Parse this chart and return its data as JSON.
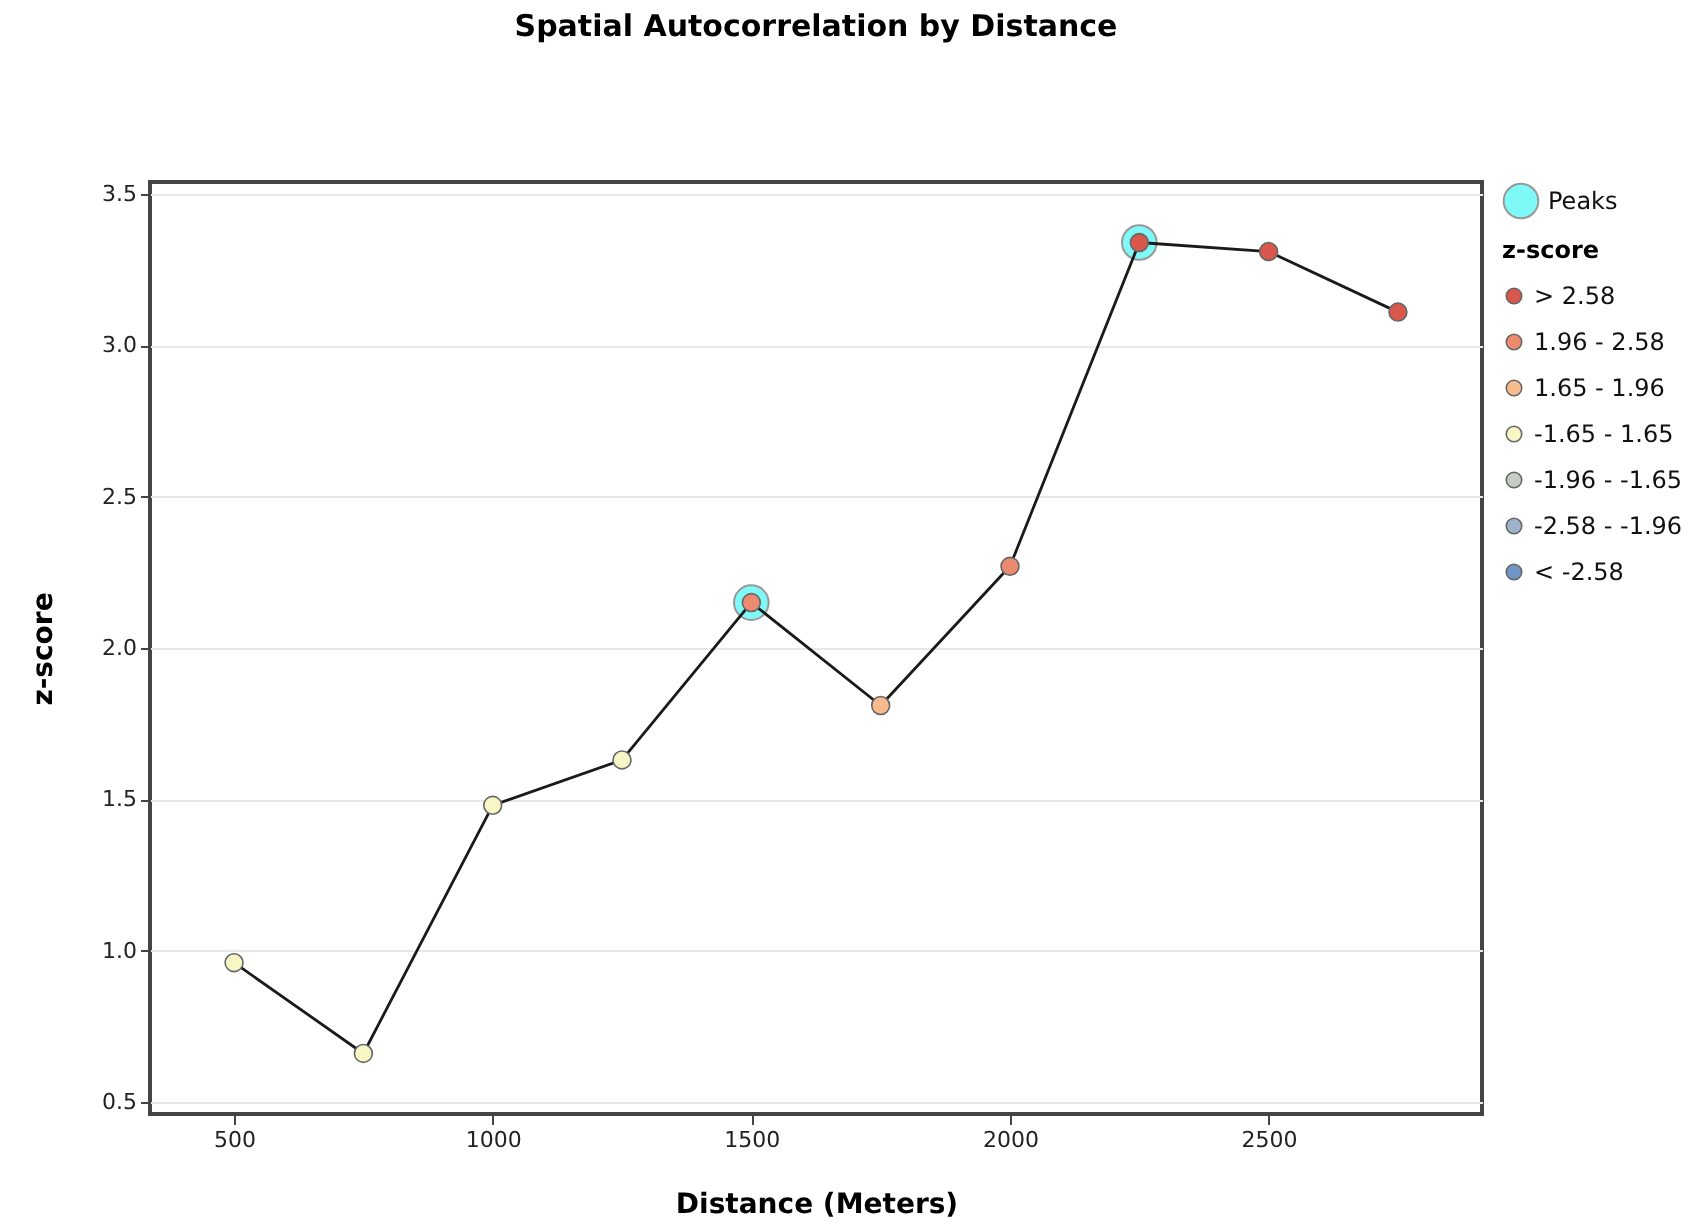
{
  "chart_data": {
    "type": "scatter",
    "title": "Spatial Autocorrelation by Distance",
    "xlabel": "Distance (Meters)",
    "ylabel": "z-score",
    "legend_title": "z-score",
    "x": [
      500,
      750,
      1000,
      1250,
      1500,
      1750,
      2000,
      2250,
      2500,
      2750
    ],
    "xlim": [
      337.5,
      2912.5
    ],
    "xticks": [
      500,
      1000,
      1500,
      2000,
      2500
    ],
    "ylim": [
      0.46,
      3.54
    ],
    "yticks": [
      0.5,
      {
        "value": 1,
        "label": "1.0"
      },
      1.5,
      {
        "value": 2,
        "label": "2.0"
      },
      2.5,
      {
        "value": 3,
        "label": "3.0"
      },
      3.5
    ],
    "grid": "y",
    "legend": "right",
    "series": [
      {
        "type": "line",
        "color": "#1a1a1a",
        "values": [
          0.96,
          0.66,
          1.48,
          1.63,
          2.15,
          1.81,
          2.27,
          3.34,
          3.31,
          3.11
        ]
      },
      {
        "name": "Peaks",
        "marker": "circle",
        "color": "#7ff8f8",
        "x": [
          1500,
          2250
        ],
        "values": [
          2.15,
          3.34
        ]
      },
      {
        "name": "> 2.58",
        "marker": "circle",
        "color": "#d9584c",
        "values": [
          null,
          null,
          null,
          null,
          null,
          null,
          null,
          3.34,
          3.31,
          3.11
        ]
      },
      {
        "name": "1.96 - 2.58",
        "marker": "circle",
        "color": "#ec8a6f",
        "values": [
          null,
          null,
          null,
          null,
          2.15,
          null,
          2.27,
          null,
          null,
          null
        ]
      },
      {
        "name": "1.65 - 1.96",
        "marker": "circle",
        "color": "#f8bb8e",
        "values": [
          null,
          null,
          null,
          null,
          null,
          1.81,
          null,
          null,
          null,
          null
        ]
      },
      {
        "name": "-1.65 - 1.65",
        "marker": "circle",
        "color": "#f8f6c4",
        "values": [
          0.96,
          0.66,
          1.48,
          1.63,
          null,
          null,
          null,
          null,
          null,
          null
        ]
      },
      {
        "name": "-1.96 - -1.65",
        "marker": "circle",
        "color": "#c6cbc3",
        "values": [
          null,
          null,
          null,
          null,
          null,
          null,
          null,
          null,
          null,
          null
        ]
      },
      {
        "name": "-2.58 - -1.96",
        "marker": "circle",
        "color": "#9fb4cb",
        "values": [
          null,
          null,
          null,
          null,
          null,
          null,
          null,
          null,
          null,
          null
        ]
      },
      {
        "name": "< -2.58",
        "marker": "circle",
        "color": "#7095c4",
        "values": [
          null,
          null,
          null,
          null,
          null,
          null,
          null,
          null,
          null,
          null
        ]
      }
    ]
  }
}
